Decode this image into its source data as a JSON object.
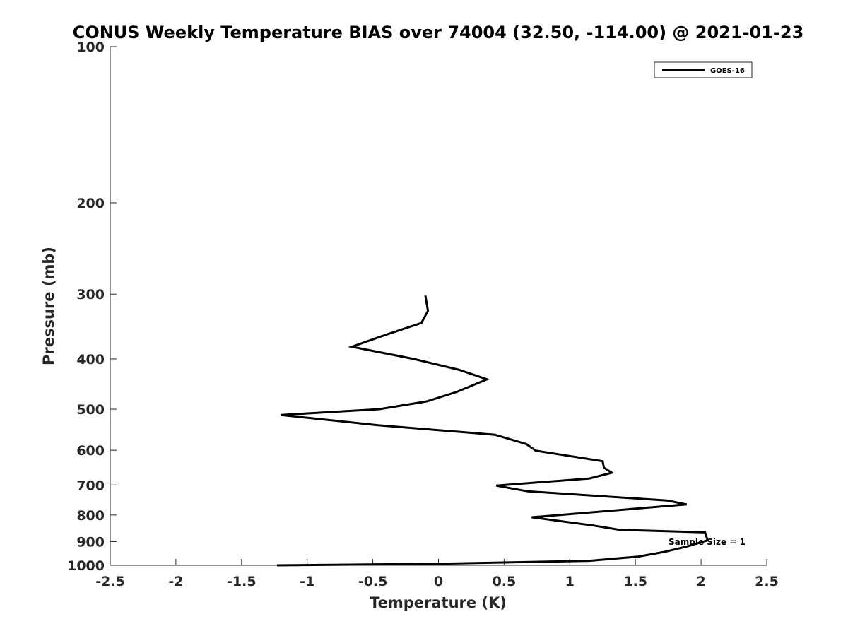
{
  "chart_data": {
    "type": "line",
    "title": "CONUS Weekly Temperature BIAS over 74004 (32.50, -114.00) @ 2021-01-23",
    "xlabel": "Temperature (K)",
    "ylabel": "Pressure (mb)",
    "xlim": [
      -2.5,
      2.5
    ],
    "ylim": [
      100,
      1000
    ],
    "y_scale": "log",
    "y_reversed": true,
    "x_ticks": [
      "-2.5",
      "-2",
      "-1.5",
      "-1",
      "-0.5",
      "0",
      "0.5",
      "1",
      "1.5",
      "2",
      "2.5"
    ],
    "y_ticks": [
      "100",
      "200",
      "300",
      "400",
      "500",
      "600",
      "700",
      "800",
      "900",
      "1000"
    ],
    "grid": false,
    "legend_position": "top-right",
    "annotation": "Sample Size = 1",
    "series": [
      {
        "name": "GOES-16",
        "color": "#000000",
        "points": [
          {
            "x": -1.23,
            "y": 1000
          },
          {
            "x": 0.0,
            "y": 993
          },
          {
            "x": 1.15,
            "y": 980
          },
          {
            "x": 1.52,
            "y": 962
          },
          {
            "x": 1.72,
            "y": 942
          },
          {
            "x": 1.89,
            "y": 920
          },
          {
            "x": 2.05,
            "y": 895
          },
          {
            "x": 2.03,
            "y": 864
          },
          {
            "x": 1.38,
            "y": 854
          },
          {
            "x": 1.18,
            "y": 838
          },
          {
            "x": 0.71,
            "y": 808
          },
          {
            "x": 1.89,
            "y": 763
          },
          {
            "x": 1.74,
            "y": 750
          },
          {
            "x": 0.68,
            "y": 720
          },
          {
            "x": 0.44,
            "y": 702
          },
          {
            "x": 1.15,
            "y": 680
          },
          {
            "x": 1.32,
            "y": 663
          },
          {
            "x": 1.26,
            "y": 648
          },
          {
            "x": 1.25,
            "y": 630
          },
          {
            "x": 0.74,
            "y": 601
          },
          {
            "x": 0.67,
            "y": 584
          },
          {
            "x": 0.43,
            "y": 560
          },
          {
            "x": -0.46,
            "y": 537
          },
          {
            "x": -1.2,
            "y": 513
          },
          {
            "x": -0.45,
            "y": 500
          },
          {
            "x": -0.09,
            "y": 483
          },
          {
            "x": 0.14,
            "y": 463
          },
          {
            "x": 0.37,
            "y": 438
          },
          {
            "x": 0.16,
            "y": 420
          },
          {
            "x": -0.19,
            "y": 400
          },
          {
            "x": -0.66,
            "y": 379
          },
          {
            "x": -0.41,
            "y": 360
          },
          {
            "x": -0.13,
            "y": 341
          },
          {
            "x": -0.08,
            "y": 323
          },
          {
            "x": -0.1,
            "y": 302
          }
        ]
      }
    ]
  }
}
